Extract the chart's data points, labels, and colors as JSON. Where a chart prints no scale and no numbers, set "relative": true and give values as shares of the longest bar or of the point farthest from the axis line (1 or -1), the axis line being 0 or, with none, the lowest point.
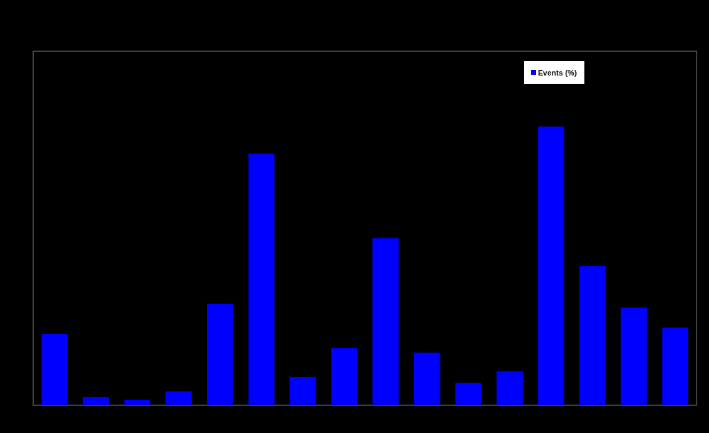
{
  "chart_data": {
    "type": "bar",
    "relative": true,
    "categories": [
      null,
      null,
      null,
      null,
      null,
      null,
      null,
      null,
      null,
      null,
      null,
      null,
      null,
      null,
      null,
      null
    ],
    "series": [
      {
        "name": "Events (%)",
        "color": "#0000ff",
        "values": [
          0.256,
          0.03,
          0.02,
          0.05,
          0.363,
          0.903,
          0.102,
          0.206,
          0.6,
          0.189,
          0.08,
          0.122,
          1,
          0.5,
          0.351,
          0.279
        ]
      }
    ],
    "legend": "top right"
  }
}
